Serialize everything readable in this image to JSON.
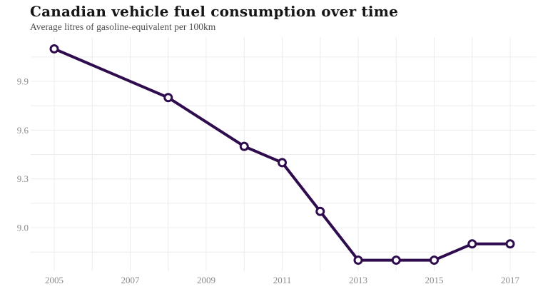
{
  "header": {
    "title": "Canadian vehicle fuel consumption over time",
    "subtitle": "Average litres of gasoline-equivalent per 100km"
  },
  "colors": {
    "background": "#ffffff",
    "line": "#2f0c4e",
    "marker_fill": "#ffffff",
    "grid": "#ececec",
    "axis_label": "#8c8c8c",
    "title": "#161616",
    "subtitle": "#4f4f4f"
  },
  "chart_data": {
    "type": "line",
    "title": "Canadian vehicle fuel consumption over time",
    "subtitle": "Average litres of gasoline-equivalent per 100km",
    "x": [
      2005,
      2008,
      2010,
      2011,
      2012,
      2013,
      2014,
      2015,
      2016,
      2017
    ],
    "values": [
      10.1,
      9.8,
      9.5,
      9.4,
      9.1,
      8.8,
      8.8,
      8.8,
      8.9,
      8.9
    ],
    "xlabel": "",
    "ylabel": "Average litres of gasoline-equivalent per 100km",
    "marker": "open-circle",
    "grid": true,
    "legend": "none",
    "x_axis": {
      "range": [
        2005,
        2017
      ],
      "gridline_years": [
        2005,
        2006,
        2007,
        2008,
        2009,
        2010,
        2011,
        2012,
        2013,
        2014,
        2015,
        2016,
        2017
      ],
      "tick_labels": [
        "2005",
        "2007",
        "2009",
        "2011",
        "2013",
        "2015",
        "2017"
      ],
      "labeled_years": [
        2005,
        2007,
        2009,
        2011,
        2013,
        2015,
        2017
      ]
    },
    "y_axis": {
      "shown_gridlines": [
        8.85,
        9.0,
        9.15,
        9.3,
        9.45,
        9.6,
        9.75,
        9.9,
        10.05
      ],
      "tick_labels": [
        "9.9",
        "9.6",
        "9.3",
        "9.0"
      ],
      "labeled_values": [
        9.9,
        9.6,
        9.3,
        9.0
      ],
      "gridline_step": 0.15
    }
  }
}
